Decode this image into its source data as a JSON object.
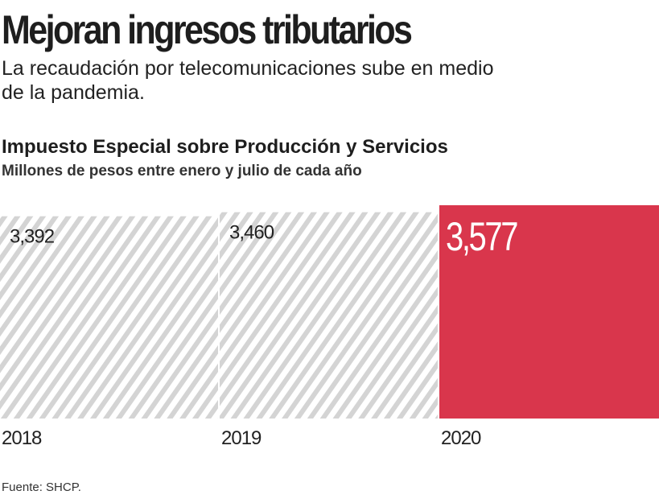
{
  "header": {
    "title": "Mejoran ingresos tributarios",
    "subtitle": "La recaudación por telecomunicaciones sube en medio de la pandemia."
  },
  "chart_data": {
    "type": "bar",
    "title": "Impuesto Especial sobre Producción y Servicios",
    "subtitle": "Millones de pesos entre enero y julio de cada año",
    "categories": [
      "2018",
      "2019",
      "2020"
    ],
    "values": [
      3392,
      3460,
      3577
    ],
    "value_labels": [
      "3,392",
      "3,460",
      "3,577"
    ],
    "highlight_index": 2,
    "colors": {
      "highlight": "#d9364c",
      "hatch": "#d4d4d4"
    },
    "xlabel": "",
    "ylabel": "",
    "ylim": [
      0,
      3577
    ],
    "grid": false
  },
  "footer": {
    "source": "Fuente: SHCP."
  }
}
